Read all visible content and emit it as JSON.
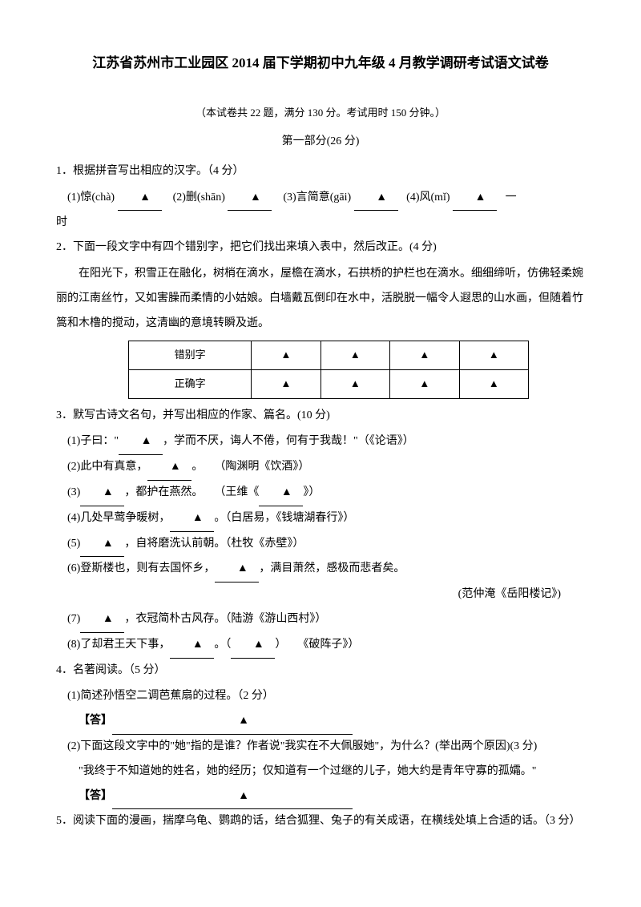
{
  "title": "江苏省苏州市工业园区 2014 届下学期初中九年级 4 月教学调研考试语文试卷",
  "subtitle": "（本试卷共 22 题，满分 130 分。考试用时 150 分钟。）",
  "section1": "第一部分(26 分)",
  "q1": {
    "text": "1．根据拼音写出相应的汉字。（4 分）",
    "items": {
      "a": "(1)惊(chà)",
      "b": "(2)删(shān)",
      "c": "(3)言简意(gāi)",
      "d": "(4)风(mǐ)",
      "tail": "一"
    },
    "line2": "时"
  },
  "q2": {
    "text": "2．下面一段文字中有四个错别字，把它们找出来填入表中，然后改正。(4 分)",
    "para": "在阳光下，积雪正在融化，树梢在滴水，屋檐在滴水，石拱桥的护栏也在滴水。细细缔听，仿佛轻柔婉丽的江南丝竹，又如害臊而柔情的小姑娘。白墙戴瓦倒印在水中，活脱脱一幅令人遐思的山水画，但随着竹篙和木橹的搅动，这清幽的意境转瞬及逝。",
    "table": {
      "row1": "错别字",
      "row2": "正确字",
      "mark": "▲"
    }
  },
  "q3": {
    "text": "3．默写古诗文名句，并写出相应的作家、篇名。(10 分)",
    "i1a": "(1)子曰：\"",
    "i1b": "，学而不厌，诲人不倦，何有于我哉！\"（《论语》）",
    "i2a": "(2)此中有真意，",
    "i2b": "。　　（陶渊明《饮酒》）",
    "i3a": "(3)",
    "i3b": "，都护在燕然。　　（王维《",
    "i3c": "》）",
    "i4a": "(4)几处早莺争暖树，",
    "i4b": "。（白居易，《钱塘湖春行》）",
    "i5a": "(5)",
    "i5b": "，自将磨洗认前朝。（杜牧《赤壁》）",
    "i6a": "(6)登斯楼也，则有去国怀乡，",
    "i6b": "，满目萧然，感极而悲者矣。",
    "i6c": "(范仲淹《岳阳楼记》)",
    "i7a": "(7)",
    "i7b": "，衣冠简朴古风存。（陆游《游山西村》）",
    "i8a": "(8)了却君王天下事，",
    "i8b": "。（",
    "i8c": "）　　《破阵子》）"
  },
  "q4": {
    "text": "4．名著阅读。（5 分）",
    "s1": "(1)简述孙悟空二调芭蕉扇的过程。（2 分）",
    "ans": "【答】",
    "s2": "(2)下面这段文字中的\"她\"指的是谁？作者说\"我实在不大佩服她\"，为什么？(举出两个原因)(3 分)",
    "quote": "\"我终于不知道她的姓名，她的经历；仅知道有一个过继的儿子，她大约是青年守寡的孤孀。\""
  },
  "q5": {
    "text": "5．阅读下面的漫画，揣摩乌龟、鹦鹉的话，结合狐狸、兔子的有关成语，在横线处填上合适的话。（3 分）"
  },
  "triangle": "▲"
}
